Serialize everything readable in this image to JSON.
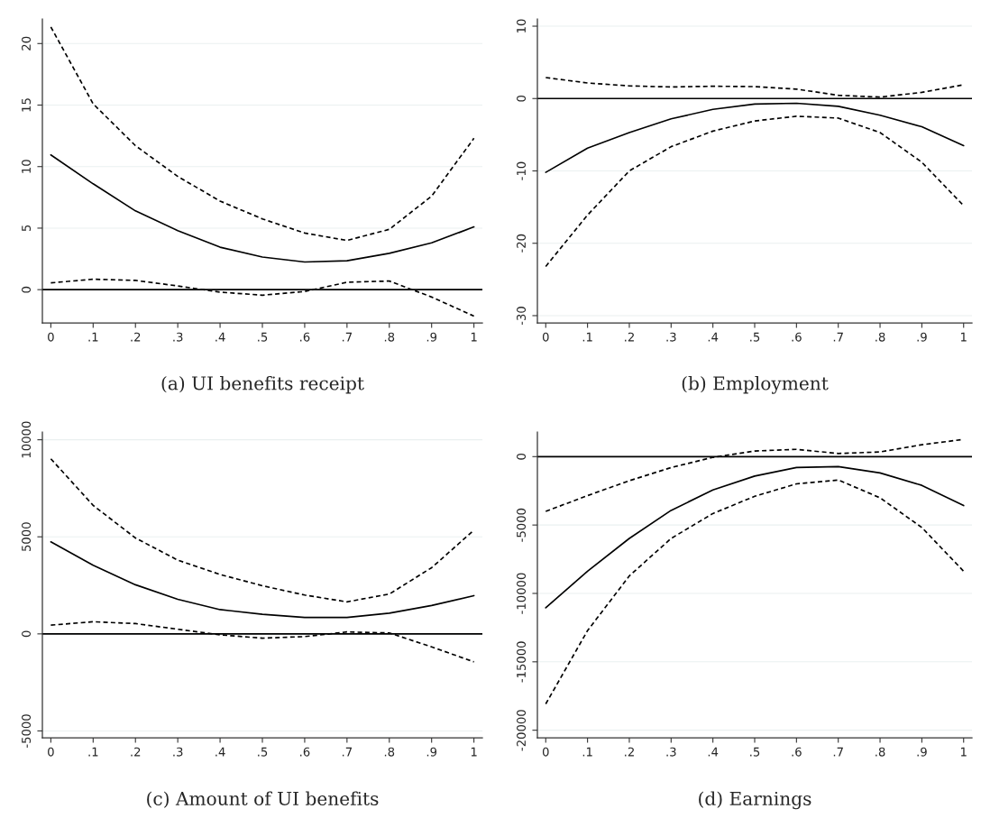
{
  "chart_data": [
    {
      "type": "line",
      "title": "(a) UI benefits receipt",
      "x": [
        0,
        0.1,
        0.2,
        0.3,
        0.4,
        0.5,
        0.6,
        0.7,
        0.8,
        0.9,
        1
      ],
      "series": [
        {
          "color": "#000000",
          "line_style": "solid",
          "values": [
            10.95,
            8.6,
            6.4,
            4.8,
            3.45,
            2.65,
            2.25,
            2.35,
            2.95,
            3.8,
            5.1
          ]
        },
        {
          "color": "#000000",
          "line_style": "dashed",
          "values": [
            21.35,
            15.1,
            11.7,
            9.2,
            7.2,
            5.75,
            4.6,
            4.0,
            4.9,
            7.6,
            12.3
          ]
        },
        {
          "color": "#000000",
          "line_style": "dashed",
          "values": [
            0.55,
            0.85,
            0.75,
            0.3,
            -0.2,
            -0.45,
            -0.15,
            0.6,
            0.7,
            -0.6,
            -2.15
          ]
        }
      ],
      "xlim": [
        -0.02,
        1.02
      ],
      "ylim": [
        -2.7,
        22
      ],
      "xticks": [
        0,
        {
          "value": 0.1,
          "label": ".1"
        },
        {
          "value": 0.2,
          "label": ".2"
        },
        {
          "value": 0.3,
          "label": ".3"
        },
        {
          "value": 0.4,
          "label": ".4"
        },
        {
          "value": 0.5,
          "label": ".5"
        },
        {
          "value": 0.6,
          "label": ".6"
        },
        {
          "value": 0.7,
          "label": ".7"
        },
        {
          "value": 0.8,
          "label": ".8"
        },
        {
          "value": 0.9,
          "label": ".9"
        },
        1
      ],
      "yticks": [
        0,
        5,
        10,
        15,
        20
      ],
      "grid": "y",
      "ref_lines": [
        {
          "axis": "y",
          "value": 0,
          "color": "#000000"
        }
      ]
    },
    {
      "type": "line",
      "title": "(b) Employment",
      "x": [
        0,
        0.1,
        0.2,
        0.3,
        0.4,
        0.5,
        0.6,
        0.7,
        0.8,
        0.9,
        1
      ],
      "series": [
        {
          "color": "#000000",
          "line_style": "solid",
          "values": [
            -10.2,
            -6.85,
            -4.7,
            -2.8,
            -1.5,
            -0.77,
            -0.65,
            -1.07,
            -2.3,
            -3.9,
            -6.5
          ]
        },
        {
          "color": "#000000",
          "line_style": "dashed",
          "values": [
            2.9,
            2.15,
            1.75,
            1.6,
            1.7,
            1.65,
            1.3,
            0.45,
            0.2,
            0.85,
            1.9
          ]
        },
        {
          "color": "#000000",
          "line_style": "dashed",
          "values": [
            -23.2,
            -16.1,
            -10.0,
            -6.65,
            -4.5,
            -3.1,
            -2.45,
            -2.7,
            -4.7,
            -8.8,
            -14.8
          ]
        }
      ],
      "xlim": [
        -0.02,
        1.02
      ],
      "ylim": [
        -31,
        11
      ],
      "xticks": [
        0,
        {
          "value": 0.1,
          "label": ".1"
        },
        {
          "value": 0.2,
          "label": ".2"
        },
        {
          "value": 0.3,
          "label": ".3"
        },
        {
          "value": 0.4,
          "label": ".4"
        },
        {
          "value": 0.5,
          "label": ".5"
        },
        {
          "value": 0.6,
          "label": ".6"
        },
        {
          "value": 0.7,
          "label": ".7"
        },
        {
          "value": 0.8,
          "label": ".8"
        },
        {
          "value": 0.9,
          "label": ".9"
        },
        1
      ],
      "yticks": [
        -30,
        -20,
        -10,
        0,
        10
      ],
      "grid": "y",
      "ref_lines": [
        {
          "axis": "y",
          "value": 0,
          "color": "#000000"
        }
      ]
    },
    {
      "type": "line",
      "title": "(c) Amount of UI benefits",
      "x": [
        0,
        0.1,
        0.2,
        0.3,
        0.4,
        0.5,
        0.6,
        0.7,
        0.8,
        0.9,
        1
      ],
      "series": [
        {
          "color": "#000000",
          "line_style": "solid",
          "values": [
            4740,
            3540,
            2530,
            1780,
            1250,
            1010,
            850,
            850,
            1070,
            1460,
            1970
          ]
        },
        {
          "color": "#000000",
          "line_style": "dashed",
          "values": [
            9020,
            6620,
            4940,
            3800,
            3060,
            2480,
            2000,
            1650,
            2050,
            3410,
            5340
          ]
        },
        {
          "color": "#000000",
          "line_style": "dashed",
          "values": [
            450,
            625,
            530,
            240,
            -50,
            -220,
            -140,
            100,
            50,
            -670,
            -1440
          ]
        }
      ],
      "xlim": [
        -0.02,
        1.02
      ],
      "ylim": [
        -5350,
        10400
      ],
      "xticks": [
        0,
        {
          "value": 0.1,
          "label": ".1"
        },
        {
          "value": 0.2,
          "label": ".2"
        },
        {
          "value": 0.3,
          "label": ".3"
        },
        {
          "value": 0.4,
          "label": ".4"
        },
        {
          "value": 0.5,
          "label": ".5"
        },
        {
          "value": 0.6,
          "label": ".6"
        },
        {
          "value": 0.7,
          "label": ".7"
        },
        {
          "value": 0.8,
          "label": ".8"
        },
        {
          "value": 0.9,
          "label": ".9"
        },
        1
      ],
      "yticks": [
        -5000,
        0,
        5000,
        10000
      ],
      "grid": "y",
      "ref_lines": [
        {
          "axis": "y",
          "value": 0,
          "color": "#000000"
        }
      ]
    },
    {
      "type": "line",
      "title": "(d) Earnings",
      "x": [
        0,
        0.1,
        0.2,
        0.3,
        0.4,
        0.5,
        0.6,
        0.7,
        0.8,
        0.9,
        1
      ],
      "series": [
        {
          "color": "#000000",
          "line_style": "solid",
          "values": [
            -11050,
            -8380,
            -5980,
            -3930,
            -2440,
            -1420,
            -800,
            -730,
            -1190,
            -2100,
            -3580
          ]
        },
        {
          "color": "#000000",
          "line_style": "dashed",
          "values": [
            -4000,
            -2850,
            -1760,
            -800,
            -50,
            410,
            530,
            230,
            340,
            870,
            1260
          ]
        },
        {
          "color": "#000000",
          "line_style": "dashed",
          "values": [
            -18080,
            -12720,
            -8720,
            -5980,
            -4160,
            -2900,
            -1990,
            -1710,
            -3010,
            -5180,
            -8380
          ]
        }
      ],
      "xlim": [
        -0.02,
        1.02
      ],
      "ylim": [
        -20550,
        1800
      ],
      "xticks": [
        0,
        {
          "value": 0.1,
          "label": ".1"
        },
        {
          "value": 0.2,
          "label": ".2"
        },
        {
          "value": 0.3,
          "label": ".3"
        },
        {
          "value": 0.4,
          "label": ".4"
        },
        {
          "value": 0.5,
          "label": ".5"
        },
        {
          "value": 0.6,
          "label": ".6"
        },
        {
          "value": 0.7,
          "label": ".7"
        },
        {
          "value": 0.8,
          "label": ".8"
        },
        {
          "value": 0.9,
          "label": ".9"
        },
        1
      ],
      "yticks": [
        -20000,
        -15000,
        -10000,
        -5000,
        0
      ],
      "grid": "y",
      "ref_lines": [
        {
          "axis": "y",
          "value": 0,
          "color": "#000000"
        }
      ]
    }
  ]
}
